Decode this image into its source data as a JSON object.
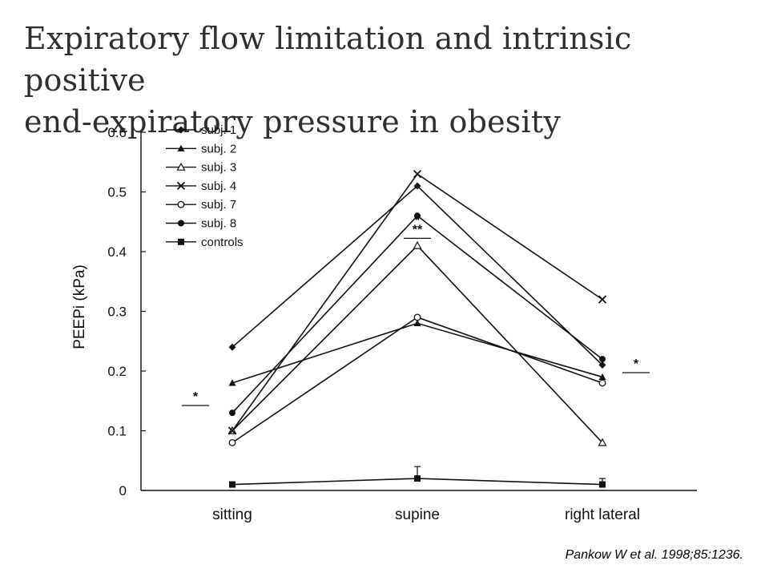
{
  "slide": {
    "title_line1": "Expiratory flow limitation and intrinsic positive",
    "title_line2": "end-expiratory pressure in obesity",
    "citation": "Pankow W et al. 1998;85:1236."
  },
  "chart_data": {
    "type": "line",
    "ylabel": "PEEPi (kPa)",
    "xlabel": "",
    "ylim": [
      0,
      0.6
    ],
    "yticks": [
      "0",
      "0.1",
      "0.2",
      "0.3",
      "0.4",
      "0.5",
      "0.6"
    ],
    "categories": [
      "sitting",
      "supine",
      "right lateral"
    ],
    "series": [
      {
        "name": "subj. 1",
        "marker": "filled-diamond",
        "values": [
          0.24,
          0.51,
          0.21
        ]
      },
      {
        "name": "subj. 2",
        "marker": "filled-triangle",
        "values": [
          0.18,
          0.28,
          0.19
        ]
      },
      {
        "name": "subj. 3",
        "marker": "open-triangle",
        "values": [
          0.1,
          0.41,
          0.08
        ]
      },
      {
        "name": "subj. 4",
        "marker": "cross",
        "values": [
          0.1,
          0.53,
          0.32
        ]
      },
      {
        "name": "subj. 7",
        "marker": "open-circle",
        "values": [
          0.08,
          0.29,
          0.18
        ]
      },
      {
        "name": "subj. 8",
        "marker": "filled-circle",
        "values": [
          0.13,
          0.46,
          0.22
        ]
      },
      {
        "name": "controls",
        "marker": "filled-square",
        "values": [
          0.01,
          0.02,
          0.01
        ],
        "error": [
          0,
          0.02,
          0.01
        ]
      }
    ],
    "annotations": [
      {
        "text": "*",
        "category": "sitting",
        "value": 0.145
      },
      {
        "text": "*",
        "category": "supine",
        "value": 0.44
      },
      {
        "text": "**",
        "category": "supine",
        "value": 0.425
      },
      {
        "text": "*",
        "category": "right lateral",
        "value": 0.2
      }
    ],
    "legend_position": "top-left",
    "grid": false
  }
}
